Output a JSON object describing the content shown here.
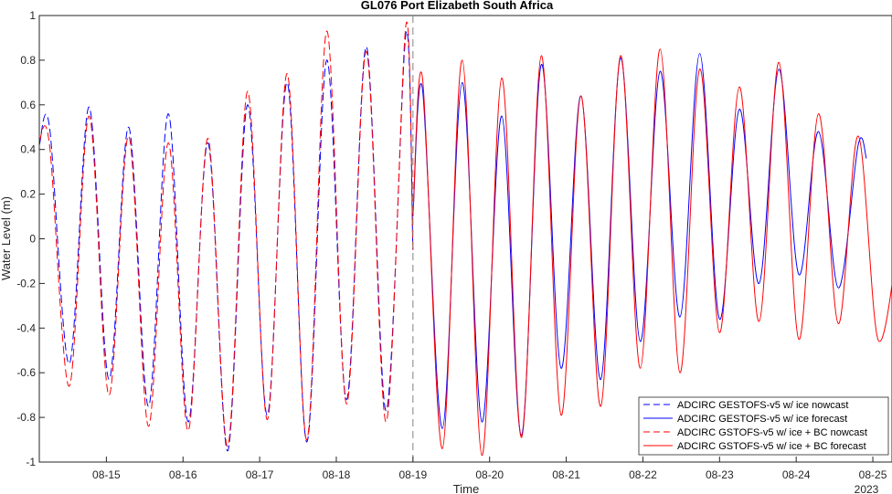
{
  "chart_data": {
    "type": "line",
    "title": "GL076 Port Elizabeth South Africa",
    "xlabel": "Time",
    "ylabel": "Water Level (m)",
    "year_label": "2023",
    "x_range": [
      "08-14 03:00",
      "08-25 06:00"
    ],
    "ylim": [
      -1,
      1
    ],
    "y_ticks": [
      "-1",
      "-0.8",
      "-0.6",
      "-0.4",
      "-0.2",
      "0",
      "0.2",
      "0.4",
      "0.6",
      "0.8",
      "1"
    ],
    "x_ticks": [
      "08-15",
      "08-16",
      "08-17",
      "08-18",
      "08-19",
      "08-20",
      "08-21",
      "08-22",
      "08-23",
      "08-24",
      "08-25"
    ],
    "nowcast_end": "08-19 00:00",
    "grid": false,
    "legend_position": "bottom-right",
    "series": [
      {
        "name": "ADCIRC GESTOFS-v5 w/ ice nowcast",
        "color": "#0000ff",
        "dash": "dashed",
        "x": [
          "08-14 03:00",
          "08-14 06:12",
          "08-14 12:24",
          "08-14 18:36",
          "08-15 00:48",
          "08-15 07:00",
          "08-15 13:12",
          "08-15 19:24",
          "08-16 01:36",
          "08-16 07:48",
          "08-16 14:00",
          "08-16 20:12",
          "08-17 02:24",
          "08-17 08:36",
          "08-17 14:48",
          "08-17 21:00",
          "08-18 03:12",
          "08-18 09:24",
          "08-18 15:36",
          "08-18 21:48",
          "08-19 00:00"
        ],
        "y": [
          0.42,
          0.5,
          -0.56,
          0.59,
          -0.63,
          0.5,
          -0.75,
          0.56,
          -0.82,
          0.43,
          -0.95,
          0.6,
          -0.79,
          0.7,
          -0.91,
          0.8,
          -0.72,
          0.86,
          -0.77,
          0.92,
          -0.05
        ]
      },
      {
        "name": "ADCIRC GESTOFS-v5 w/ ice forecast",
        "color": "#0000ff",
        "dash": "solid",
        "x": [
          "08-19 00:00",
          "08-19 03:00",
          "08-19 09:12",
          "08-19 15:24",
          "08-19 21:36",
          "08-20 03:48",
          "08-20 10:00",
          "08-20 16:12",
          "08-20 22:24",
          "08-21 04:36",
          "08-21 10:48",
          "08-21 17:00",
          "08-21 23:12",
          "08-22 05:24",
          "08-22 11:36",
          "08-22 17:48",
          "08-23 00:00",
          "08-23 06:12",
          "08-23 12:24",
          "08-23 18:36",
          "08-24 00:48",
          "08-24 07:00",
          "08-24 13:12",
          "08-24 19:24",
          "08-24 22:00"
        ],
        "y": [
          0.1,
          0.67,
          -0.85,
          0.7,
          -0.82,
          0.55,
          -0.88,
          0.78,
          -0.58,
          0.64,
          -0.63,
          0.81,
          -0.46,
          0.75,
          -0.35,
          0.83,
          -0.36,
          0.58,
          -0.2,
          0.76,
          -0.16,
          0.48,
          -0.22,
          0.42,
          0.36
        ]
      },
      {
        "name": "ADCIRC GSTOFS-v5 w/ ice + BC nowcast",
        "color": "#ff0000",
        "dash": "dashed",
        "x": [
          "08-14 03:00",
          "08-14 06:12",
          "08-14 12:24",
          "08-14 18:36",
          "08-15 00:48",
          "08-15 07:00",
          "08-15 13:12",
          "08-15 19:24",
          "08-16 01:36",
          "08-16 07:48",
          "08-16 14:00",
          "08-16 20:12",
          "08-17 02:24",
          "08-17 08:36",
          "08-17 14:48",
          "08-17 21:00",
          "08-18 03:12",
          "08-18 09:24",
          "08-18 15:36",
          "08-18 21:48",
          "08-19 00:00"
        ],
        "y": [
          0.44,
          0.42,
          -0.66,
          0.55,
          -0.7,
          0.46,
          -0.84,
          0.43,
          -0.86,
          0.45,
          -0.93,
          0.66,
          -0.81,
          0.74,
          -0.9,
          0.93,
          -0.74,
          0.84,
          -0.82,
          0.96,
          -0.05
        ]
      },
      {
        "name": "ADCIRC GSTOFS-v5 w/ ice + BC forecast",
        "color": "#ff0000",
        "dash": "solid",
        "x": [
          "08-19 00:00",
          "08-19 03:00",
          "08-19 09:12",
          "08-19 15:24",
          "08-19 21:36",
          "08-20 03:48",
          "08-20 10:00",
          "08-20 16:12",
          "08-20 22:24",
          "08-21 04:36",
          "08-21 10:48",
          "08-21 17:00",
          "08-21 23:12",
          "08-22 05:24",
          "08-22 11:36",
          "08-22 17:48",
          "08-23 00:00",
          "08-23 06:12",
          "08-23 12:24",
          "08-23 18:36",
          "08-24 00:48",
          "08-24 07:00",
          "08-24 13:12",
          "08-24 19:24",
          "08-25 01:36",
          "08-25 07:48"
        ],
        "y": [
          0.1,
          0.72,
          -0.94,
          0.8,
          -0.97,
          0.72,
          -0.89,
          0.82,
          -0.79,
          0.64,
          -0.75,
          0.82,
          -0.58,
          0.85,
          -0.6,
          0.76,
          -0.42,
          0.68,
          -0.37,
          0.79,
          -0.45,
          0.56,
          -0.38,
          0.46,
          -0.45,
          -0.03
        ]
      }
    ]
  }
}
